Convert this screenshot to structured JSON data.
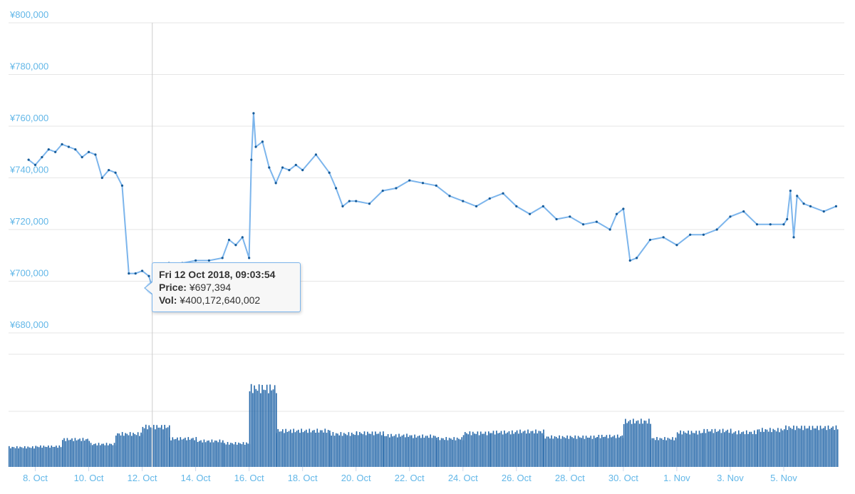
{
  "chart_data": [
    {
      "type": "line",
      "title": "",
      "xlabel": "",
      "ylabel": "",
      "ylim": [
        680000,
        800000
      ],
      "yticks": [
        "¥680,000",
        "¥700,000",
        "¥720,000",
        "¥740,000",
        "¥760,000",
        "¥780,000",
        "¥800,000"
      ],
      "xticks": [
        "8. Oct",
        "10. Oct",
        "12. Oct",
        "14. Oct",
        "16. Oct",
        "18. Oct",
        "20. Oct",
        "22. Oct",
        "24. Oct",
        "26. Oct",
        "28. Oct",
        "30. Oct",
        "1. Nov",
        "3. Nov",
        "5. Nov"
      ],
      "x_range": [
        "2018-10-07",
        "2018-11-07"
      ],
      "grid": true,
      "series": [
        {
          "x": [
            "2018-10-07 18:00",
            "2018-10-08 00:00",
            "2018-10-08 06:00",
            "2018-10-08 12:00",
            "2018-10-08 18:00",
            "2018-10-09 00:00",
            "2018-10-09 06:00",
            "2018-10-09 12:00",
            "2018-10-09 18:00",
            "2018-10-10 00:00",
            "2018-10-10 06:00",
            "2018-10-10 12:00",
            "2018-10-10 18:00",
            "2018-10-11 00:00",
            "2018-10-11 06:00",
            "2018-10-11 12:00",
            "2018-10-11 18:00",
            "2018-10-12 00:00",
            "2018-10-12 06:00",
            "2018-10-12 09:03",
            "2018-10-12 18:00",
            "2018-10-13 00:00",
            "2018-10-13 12:00",
            "2018-10-14 00:00",
            "2018-10-14 12:00",
            "2018-10-15 00:00",
            "2018-10-15 06:00",
            "2018-10-15 12:00",
            "2018-10-15 18:00",
            "2018-10-16 00:00",
            "2018-10-16 02:00",
            "2018-10-16 04:00",
            "2018-10-16 06:00",
            "2018-10-16 12:00",
            "2018-10-16 18:00",
            "2018-10-17 00:00",
            "2018-10-17 06:00",
            "2018-10-17 12:00",
            "2018-10-17 18:00",
            "2018-10-18 00:00",
            "2018-10-18 12:00",
            "2018-10-19 00:00",
            "2018-10-19 06:00",
            "2018-10-19 12:00",
            "2018-10-19 18:00",
            "2018-10-20 00:00",
            "2018-10-20 12:00",
            "2018-10-21 00:00",
            "2018-10-21 12:00",
            "2018-10-22 00:00",
            "2018-10-22 12:00",
            "2018-10-23 00:00",
            "2018-10-23 12:00",
            "2018-10-24 00:00",
            "2018-10-24 12:00",
            "2018-10-25 00:00",
            "2018-10-25 12:00",
            "2018-10-26 00:00",
            "2018-10-26 12:00",
            "2018-10-27 00:00",
            "2018-10-27 12:00",
            "2018-10-28 00:00",
            "2018-10-28 12:00",
            "2018-10-29 00:00",
            "2018-10-29 12:00",
            "2018-10-29 18:00",
            "2018-10-30 00:00",
            "2018-10-30 06:00",
            "2018-10-30 12:00",
            "2018-10-31 00:00",
            "2018-10-31 12:00",
            "2018-11-01 00:00",
            "2018-11-01 12:00",
            "2018-11-02 00:00",
            "2018-11-02 12:00",
            "2018-11-03 00:00",
            "2018-11-03 12:00",
            "2018-11-04 00:00",
            "2018-11-04 12:00",
            "2018-11-05 00:00",
            "2018-11-05 03:00",
            "2018-11-05 06:00",
            "2018-11-05 09:00",
            "2018-11-05 12:00",
            "2018-11-05 18:00",
            "2018-11-06 00:00",
            "2018-11-06 12:00",
            "2018-11-06 23:00"
          ],
          "values": [
            747000,
            745000,
            748000,
            751000,
            750000,
            753000,
            752000,
            751000,
            748000,
            750000,
            749000,
            740000,
            743000,
            742000,
            737000,
            703000,
            703000,
            704000,
            702000,
            697394,
            706000,
            707000,
            707000,
            708000,
            708000,
            709000,
            716000,
            714000,
            717000,
            709000,
            747000,
            765000,
            752000,
            754000,
            744000,
            738000,
            744000,
            743000,
            745000,
            743000,
            749000,
            742000,
            736000,
            729000,
            731000,
            731000,
            730000,
            735000,
            736000,
            739000,
            738000,
            737000,
            733000,
            731000,
            729000,
            732000,
            734000,
            729000,
            726000,
            729000,
            724000,
            725000,
            722000,
            723000,
            720000,
            726000,
            728000,
            708000,
            709000,
            716000,
            717000,
            714000,
            718000,
            718000,
            720000,
            725000,
            727000,
            722000,
            722000,
            722000,
            724000,
            735000,
            717000,
            733000,
            730000,
            729000,
            727000,
            729000
          ]
        }
      ]
    },
    {
      "type": "bar",
      "title": "",
      "series": [
        {
          "name": "Vol",
          "x": [
            "2018-10-07",
            "2018-10-08",
            "2018-10-09",
            "2018-10-10",
            "2018-10-11",
            "2018-10-12",
            "2018-10-13",
            "2018-10-14",
            "2018-10-15",
            "2018-10-16",
            "2018-10-17",
            "2018-10-18",
            "2018-10-19",
            "2018-10-20",
            "2018-10-21",
            "2018-10-22",
            "2018-10-23",
            "2018-10-24",
            "2018-10-25",
            "2018-10-26",
            "2018-10-27",
            "2018-10-28",
            "2018-10-29",
            "2018-10-30",
            "2018-10-31",
            "2018-11-01",
            "2018-11-02",
            "2018-11-03",
            "2018-11-04",
            "2018-11-05",
            "2018-11-06"
          ],
          "values": [
            0.25,
            0.26,
            0.35,
            0.29,
            0.42,
            0.51,
            0.36,
            0.33,
            0.3,
            1.0,
            0.46,
            0.46,
            0.42,
            0.43,
            0.4,
            0.39,
            0.36,
            0.43,
            0.44,
            0.45,
            0.38,
            0.38,
            0.39,
            0.58,
            0.36,
            0.44,
            0.46,
            0.44,
            0.47,
            0.5,
            0.5
          ]
        }
      ]
    }
  ],
  "tooltip": {
    "title": "Fri 12 Oct 2018, 09:03:54",
    "price_label": "Price:",
    "price_value": "¥697,394",
    "vol_label": "Vol:",
    "vol_value": "¥400,172,640,002"
  },
  "colors": {
    "line": "#7cb5ec",
    "marker": "#165b99",
    "bars": "#2366a8",
    "axis_text": "#62b7e8",
    "grid": "#e6e6e6",
    "crosshair": "#cccccc"
  }
}
